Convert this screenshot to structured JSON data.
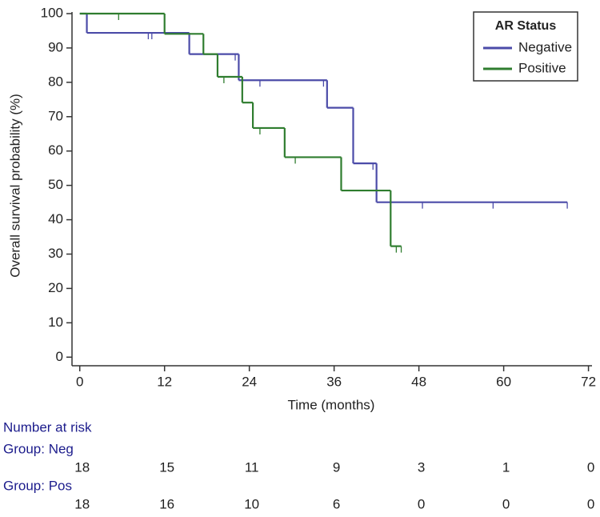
{
  "chart_data": {
    "type": "kaplan-meier",
    "x_label": "Time (months)",
    "y_label": "Overall survival probability (%)",
    "xlim": [
      -1.1,
      72.5
    ],
    "ylim": [
      -2.5,
      100
    ],
    "xticks": [
      0,
      12,
      24,
      36,
      48,
      60,
      72
    ],
    "yticks": [
      0,
      10,
      20,
      30,
      40,
      50,
      60,
      70,
      80,
      90,
      100
    ],
    "legend_title": "AR Status",
    "legend_position": "upper right",
    "series": [
      {
        "name": "Negative",
        "color": "#4b4ba8",
        "x": [
          0,
          1,
          15.5,
          22.5,
          35,
          38.7,
          42,
          69
        ],
        "values": [
          100,
          94.4,
          88.2,
          80.6,
          72.6,
          56.4,
          45.1,
          45.1
        ],
        "censored_x": [
          9.7,
          10.2,
          22,
          23,
          25.5,
          34.5,
          41.5,
          48.5,
          58.5,
          69
        ],
        "censored_values": [
          94.4,
          94.4,
          88.2,
          80.6,
          80.6,
          80.6,
          56.4,
          45.1,
          45.1,
          45.1
        ]
      },
      {
        "name": "Positive",
        "color": "#2f7d2f",
        "x": [
          0,
          12,
          17.5,
          19.5,
          23,
          24.5,
          29,
          37,
          44,
          45.5
        ],
        "values": [
          100,
          94.1,
          88.2,
          81.6,
          74.1,
          66.7,
          58.2,
          48.5,
          32.3,
          32.3
        ],
        "censored_x": [
          5.5,
          20.4,
          25.5,
          30.5,
          44.8,
          45.5
        ],
        "censored_values": [
          100,
          81.6,
          66.7,
          58.2,
          32.3,
          32.3
        ]
      }
    ],
    "risk_table": {
      "title": "Number at risk",
      "groups": [
        {
          "label": "Group: Neg",
          "counts": [
            18,
            15,
            11,
            9,
            3,
            1,
            0
          ]
        },
        {
          "label": "Group: Pos",
          "counts": [
            18,
            16,
            10,
            6,
            0,
            0,
            0
          ]
        }
      ]
    }
  }
}
